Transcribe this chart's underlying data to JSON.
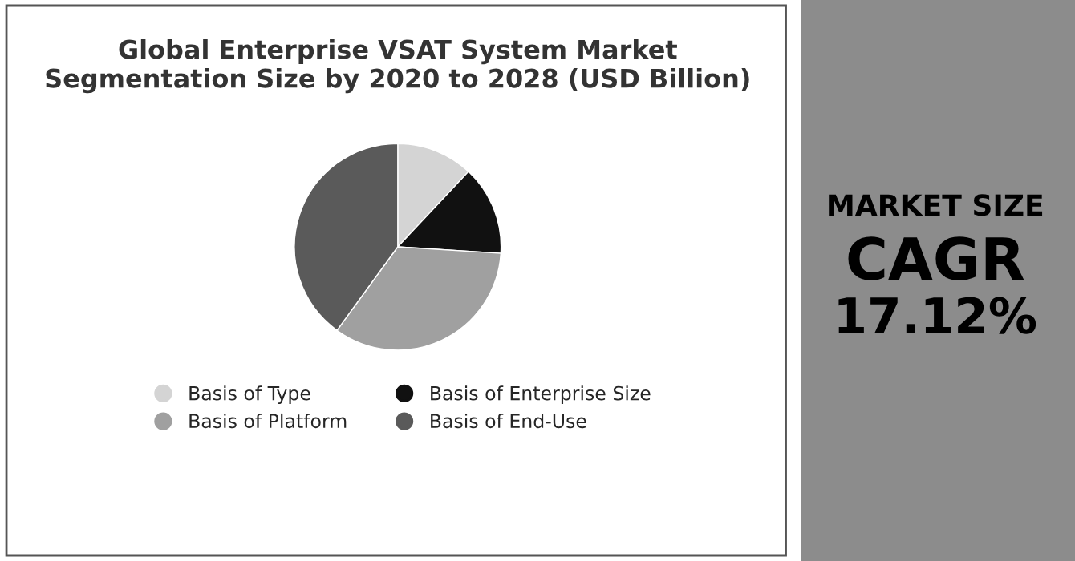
{
  "chart_data": [
    {
      "type": "pie",
      "title": "Global Enterprise VSAT System Market\nSegmentation Size by 2020 to 2028 (USD Billion)",
      "categories": [
        "Basis of Type",
        "Basis of Enterprise Size",
        "Basis of Platform",
        "Basis of End-Use"
      ],
      "values": [
        12,
        14,
        34,
        40
      ],
      "colors": [
        "#d4d4d4",
        "#111111",
        "#a0a0a0",
        "#5a5a5a"
      ],
      "legend": "bottom"
    },
    {
      "type": "other",
      "annotations": [
        "MARKET SIZE",
        "CAGR",
        "17.12%"
      ]
    }
  ]
}
